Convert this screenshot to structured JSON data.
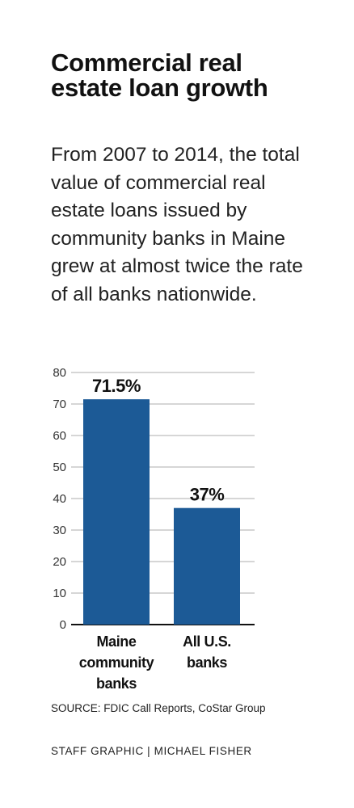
{
  "header": {
    "title": "Commercial real estate loan growth",
    "subtitle": "From 2007 to 2014, the total value of commercial real estate loans issued by community banks in Maine grew at almost twice the rate of all banks nationwide."
  },
  "chart_data": {
    "type": "bar",
    "categories": [
      "Maine community banks",
      "All U.S. banks"
    ],
    "values": [
      71.5,
      37
    ],
    "data_labels": [
      "71.5%",
      "37%"
    ],
    "ylim": [
      0,
      80
    ],
    "yticks": [
      0,
      10,
      20,
      30,
      40,
      50,
      60,
      70,
      80
    ],
    "grid": true,
    "bar_color": "#1c5a96",
    "grid_color": "#c8c8c8"
  },
  "footer": {
    "source": "SOURCE: FDIC Call Reports, CoStar Group",
    "credit": "STAFF GRAPHIC | MICHAEL FISHER"
  }
}
